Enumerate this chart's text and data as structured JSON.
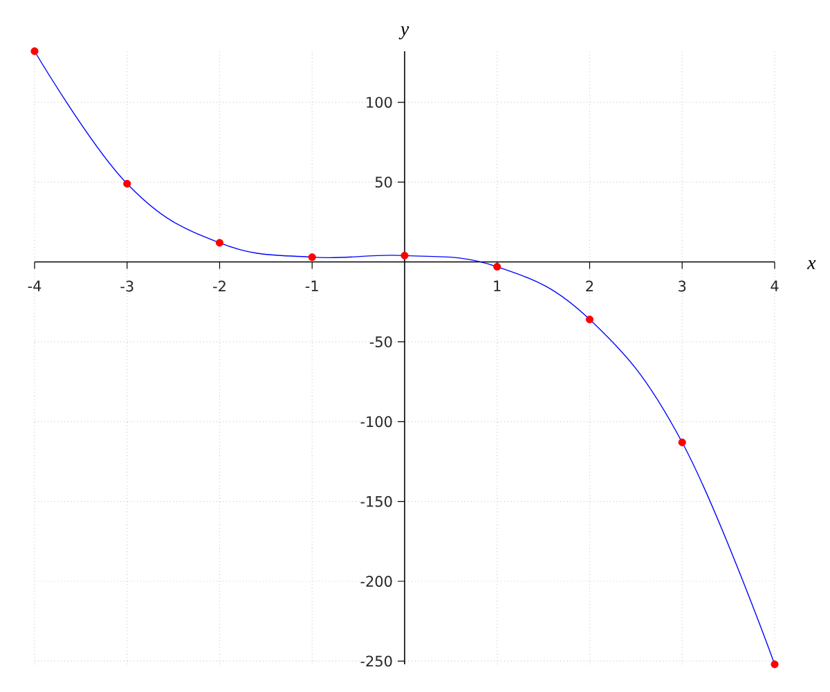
{
  "chart_data": {
    "type": "line",
    "xlabel": "x",
    "ylabel": "y",
    "x": [
      -4,
      -3,
      -2,
      -1,
      0,
      1,
      2,
      3,
      4
    ],
    "series": [
      {
        "color": "#0000ff",
        "marker": "none",
        "values": [
          132,
          49,
          12,
          3,
          4,
          -3,
          -36,
          -113,
          -252
        ]
      },
      {
        "type": "scatter",
        "color": "#ff0000",
        "marker": "circle",
        "values": [
          132,
          49,
          12,
          3,
          4,
          -3,
          -36,
          -113,
          -252
        ]
      }
    ],
    "xlim": [
      -4,
      4
    ],
    "ylim": [
      -252,
      132
    ],
    "xticks": [
      -4,
      -3,
      -2,
      -1,
      1,
      2,
      3,
      4
    ],
    "yticks": [
      -250,
      -200,
      -150,
      -100,
      -50,
      50,
      100
    ],
    "grid": true
  }
}
